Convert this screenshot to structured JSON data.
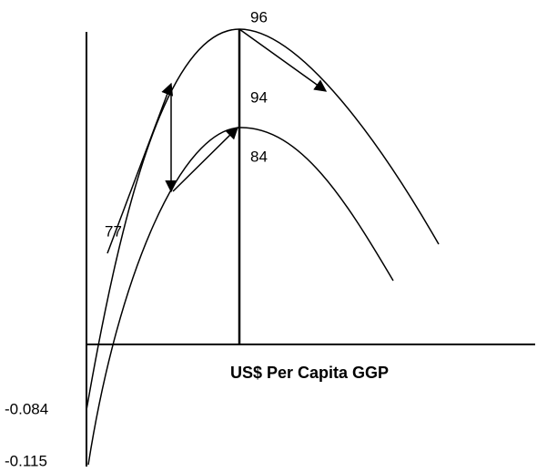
{
  "labels": {
    "upper_peak": "96",
    "middle": "94",
    "lower_peak": "84",
    "start": "77"
  },
  "x_axis_label": "US$ Per Capita GGP",
  "y_labels": [
    "-0.084",
    "-0.115"
  ]
}
